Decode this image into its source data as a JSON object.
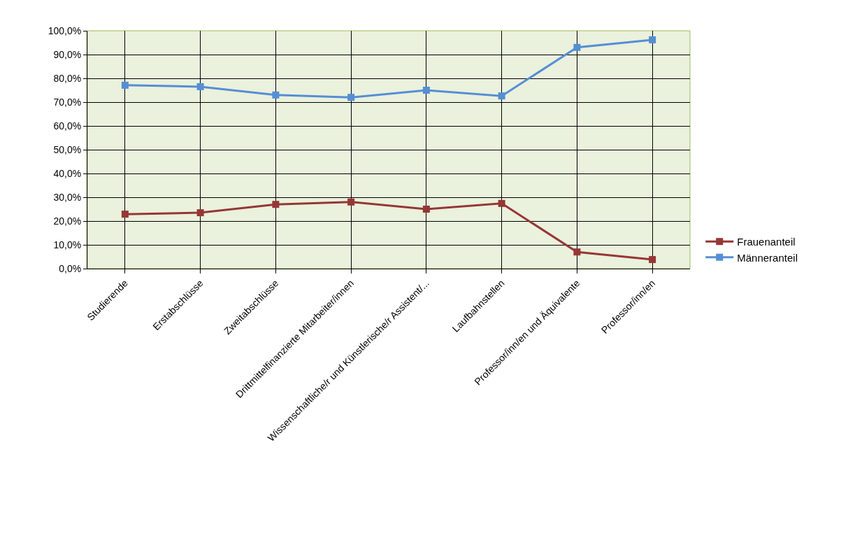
{
  "chart_data": {
    "type": "line",
    "categories": [
      "Studierende",
      "Erstabschlüsse",
      "Zweitabschlüsse",
      "Drittmittelfinanzierte Mitarbeiter/innen",
      "Wissenschaftliche/r und Künstlerische/r Assistent/...",
      "Laufbahnstellen",
      "Professor/inn/en und Äquivalente",
      "Professor/inn/en"
    ],
    "series": [
      {
        "name": "Frauenanteil",
        "color": "#953735",
        "values": [
          22.9,
          23.5,
          27,
          28,
          25,
          27.4,
          7,
          3.8
        ]
      },
      {
        "name": "Männeranteil",
        "color": "#558ed5",
        "values": [
          77.1,
          76.5,
          73,
          72,
          75,
          72.6,
          93,
          96.2
        ]
      }
    ],
    "ylim": [
      0,
      100
    ],
    "yticks": [
      {
        "value": 0,
        "label": "0,0%"
      },
      {
        "value": 10,
        "label": "10,0%"
      },
      {
        "value": 20,
        "label": "20,0%"
      },
      {
        "value": 30,
        "label": "30,0%"
      },
      {
        "value": 40,
        "label": "40,0%"
      },
      {
        "value": 50,
        "label": "50,0%"
      },
      {
        "value": 60,
        "label": "60,0%"
      },
      {
        "value": 70,
        "label": "70,0%"
      },
      {
        "value": 80,
        "label": "80,0%"
      },
      {
        "value": 90,
        "label": "90,0%"
      },
      {
        "value": 100,
        "label": "100,0%"
      }
    ],
    "grid": true,
    "legend": "right",
    "marker": "square",
    "line_style": "solid"
  }
}
